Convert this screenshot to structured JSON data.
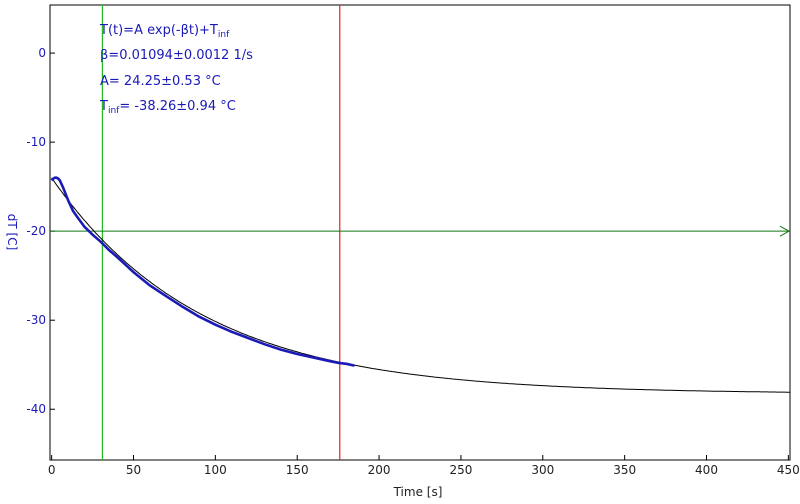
{
  "chart_data": {
    "type": "line",
    "xlabel": "Time [s]",
    "ylabel": "dT [C]",
    "xlim": [
      -1,
      451
    ],
    "ylim": [
      -45.7,
      5.4
    ],
    "x_ticks": [
      0,
      50,
      100,
      150,
      200,
      250,
      300,
      350,
      400,
      450
    ],
    "y_ticks": [
      0,
      -10,
      -20,
      -30,
      -40
    ],
    "grid": false,
    "fit": {
      "A": 24.25,
      "beta": 0.01094,
      "T_inf": -38.26,
      "x_range": [
        0,
        451
      ]
    },
    "series": [
      {
        "kind": "measured",
        "x": [
          0,
          1,
          2,
          3,
          4,
          5,
          7,
          10,
          13,
          16,
          20,
          25,
          30,
          35,
          40,
          50,
          60,
          70,
          80,
          90,
          100,
          110,
          120,
          130,
          140,
          150,
          160,
          170,
          175,
          180,
          185
        ],
        "y": [
          -14.3,
          -14.1,
          -14.0,
          -14.0,
          -14.1,
          -14.3,
          -15.1,
          -16.5,
          -17.7,
          -18.5,
          -19.5,
          -20.4,
          -21.2,
          -22.1,
          -22.9,
          -24.6,
          -26.1,
          -27.3,
          -28.5,
          -29.6,
          -30.5,
          -31.3,
          -32.0,
          -32.7,
          -33.3,
          -33.8,
          -34.2,
          -34.6,
          -34.8,
          -34.9,
          -35.1
        ],
        "color": "#1a1ab8"
      }
    ],
    "annotations": {
      "formula": "T(t)=A exp(-βt)+T",
      "formula_sub": "inf",
      "beta": "β=0.01094±0.0012 1/s",
      "a": "A= 24.25±0.53 °C",
      "tinf_main": "T",
      "tinf_sub": "inf",
      "tinf_rest": "= -38.26±0.94 °C"
    },
    "markers": {
      "cursor_green_x": 31,
      "cursor_red_x": 176,
      "h_level_y": -20
    },
    "colors": {
      "fit": "#000000",
      "measured": "#1a1ab8",
      "green": "#22bb22",
      "hline": "#117711",
      "red": "#dd2222",
      "tick_y": "#1a1ab8"
    }
  }
}
